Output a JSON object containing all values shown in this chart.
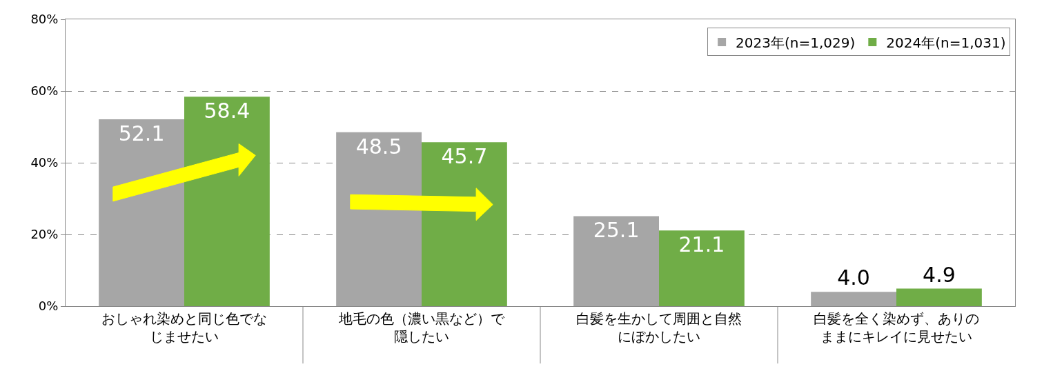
{
  "chart_data": {
    "type": "bar",
    "categories": [
      "おしゃれ染めと同じ色でなじませたい",
      "地毛の色（濃い黒など）で隠したい",
      "白髪を生かして周囲と自然にぼかしたい",
      "白髪を全く染めず、ありのままにキレイに見せたい"
    ],
    "series": [
      {
        "name": "2023年(n=1,029)",
        "color": "#a6a6a6",
        "values": [
          52.1,
          48.5,
          25.1,
          4.0
        ],
        "value_labels": [
          "52.1",
          "48.5",
          "25.1",
          "4.0"
        ]
      },
      {
        "name": "2024年(n=1,031)",
        "color": "#70ad47",
        "values": [
          58.4,
          45.7,
          21.1,
          4.9
        ],
        "value_labels": [
          "58.4",
          "45.7",
          "21.1",
          "4.9"
        ]
      }
    ],
    "ylim": [
      0,
      80
    ],
    "yticks": [
      {
        "value": 0,
        "label": "0%"
      },
      {
        "value": 20,
        "label": "20%"
      },
      {
        "value": 40,
        "label": "40%"
      },
      {
        "value": 60,
        "label": "60%"
      },
      {
        "value": 80,
        "label": "80%"
      }
    ],
    "grid": "y",
    "legend": "top right"
  }
}
